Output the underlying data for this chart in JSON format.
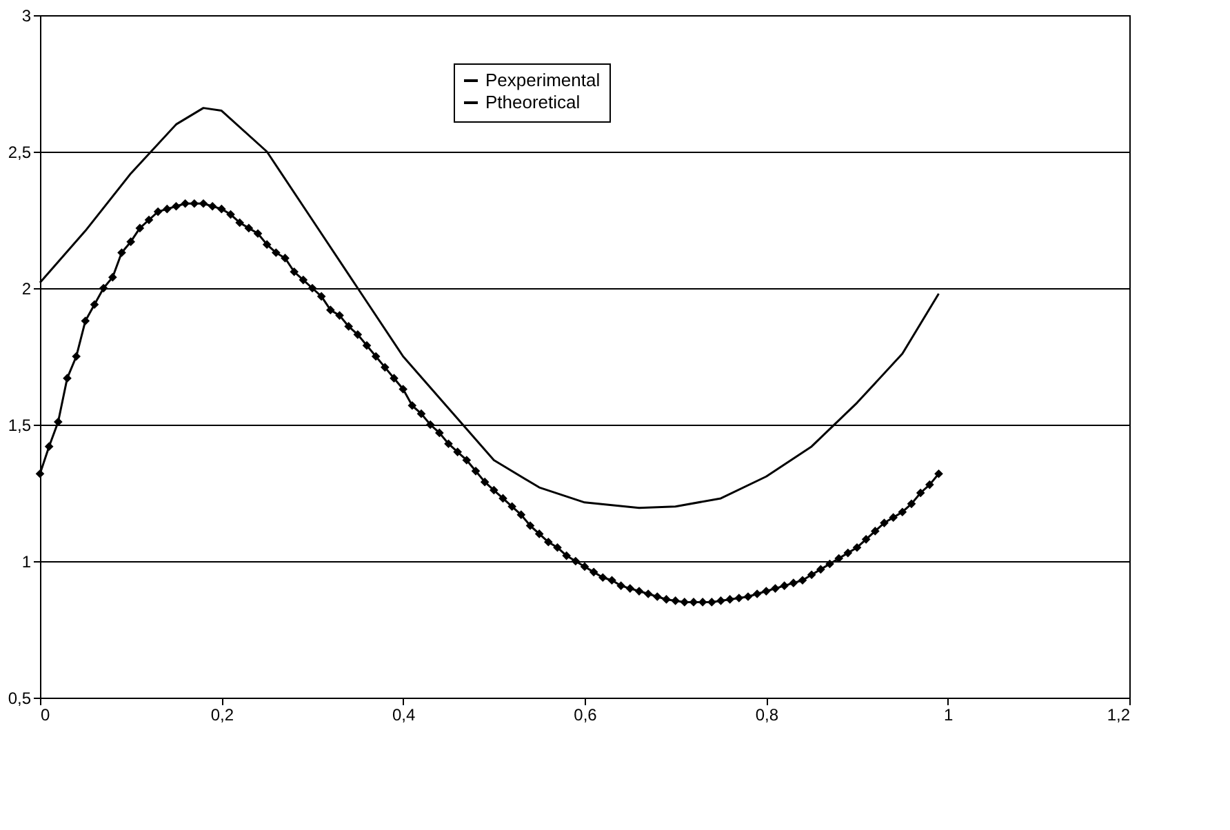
{
  "chart_data": {
    "type": "line",
    "xlim": [
      0,
      1.2
    ],
    "ylim": [
      0.5,
      3
    ],
    "xticks": [
      0,
      {
        "value": 0.2,
        "label": "0,2"
      },
      {
        "value": 0.4,
        "label": "0,4"
      },
      {
        "value": 0.6,
        "label": "0,6"
      },
      {
        "value": 0.8,
        "label": "0,8"
      },
      1,
      {
        "value": 1.2,
        "label": "1,2"
      }
    ],
    "yticks": [
      {
        "value": 0.5,
        "label": "0,5"
      },
      1,
      {
        "value": 1.5,
        "label": "1,5"
      },
      2,
      {
        "value": 2.5,
        "label": "2,5"
      },
      3
    ],
    "grid": "y",
    "legend": "top",
    "line_style": "solid",
    "series": [
      {
        "name": "Pexperimental",
        "color": "#000000",
        "marker": "diamond",
        "x": [
          0,
          0.01,
          0.02,
          0.03,
          0.04,
          0.05,
          0.06,
          0.07,
          0.08,
          0.09,
          0.1,
          0.11,
          0.12,
          0.13,
          0.14,
          0.15,
          0.16,
          0.17,
          0.18,
          0.19,
          0.2,
          0.21,
          0.22,
          0.23,
          0.24,
          0.25,
          0.26,
          0.27,
          0.28,
          0.29,
          0.3,
          0.31,
          0.32,
          0.33,
          0.34,
          0.35,
          0.36,
          0.37,
          0.38,
          0.39,
          0.4,
          0.41,
          0.42,
          0.43,
          0.44,
          0.45,
          0.46,
          0.47,
          0.48,
          0.49,
          0.5,
          0.51,
          0.52,
          0.53,
          0.54,
          0.55,
          0.56,
          0.57,
          0.58,
          0.59,
          0.6,
          0.61,
          0.62,
          0.63,
          0.64,
          0.65,
          0.66,
          0.67,
          0.68,
          0.69,
          0.7,
          0.71,
          0.72,
          0.73,
          0.74,
          0.75,
          0.76,
          0.77,
          0.78,
          0.79,
          0.8,
          0.81,
          0.82,
          0.83,
          0.84,
          0.85,
          0.86,
          0.87,
          0.88,
          0.89,
          0.9,
          0.91,
          0.92,
          0.93,
          0.94,
          0.95,
          0.96,
          0.97,
          0.98,
          0.99
        ],
        "values": [
          1.32,
          1.42,
          1.51,
          1.67,
          1.75,
          1.88,
          1.94,
          2.0,
          2.04,
          2.13,
          2.17,
          2.22,
          2.25,
          2.28,
          2.29,
          2.3,
          2.31,
          2.31,
          2.31,
          2.3,
          2.29,
          2.27,
          2.24,
          2.22,
          2.2,
          2.16,
          2.13,
          2.11,
          2.06,
          2.03,
          2.0,
          1.97,
          1.92,
          1.9,
          1.86,
          1.83,
          1.79,
          1.75,
          1.71,
          1.67,
          1.63,
          1.57,
          1.54,
          1.5,
          1.47,
          1.43,
          1.4,
          1.37,
          1.33,
          1.29,
          1.26,
          1.23,
          1.2,
          1.17,
          1.13,
          1.1,
          1.07,
          1.05,
          1.02,
          1.0,
          0.98,
          0.96,
          0.94,
          0.93,
          0.91,
          0.9,
          0.89,
          0.88,
          0.87,
          0.86,
          0.855,
          0.85,
          0.85,
          0.85,
          0.85,
          0.855,
          0.86,
          0.865,
          0.87,
          0.88,
          0.89,
          0.9,
          0.91,
          0.92,
          0.93,
          0.95,
          0.97,
          0.99,
          1.01,
          1.03,
          1.05,
          1.08,
          1.11,
          1.14,
          1.16,
          1.18,
          1.21,
          1.25,
          1.28,
          1.32
        ]
      },
      {
        "name": "Ptheoretical",
        "color": "#000000",
        "marker": "none",
        "x": [
          0,
          0.05,
          0.1,
          0.15,
          0.18,
          0.2,
          0.25,
          0.3,
          0.35,
          0.4,
          0.45,
          0.5,
          0.55,
          0.6,
          0.66,
          0.7,
          0.75,
          0.8,
          0.85,
          0.9,
          0.95,
          0.99
        ],
        "values": [
          2.02,
          2.21,
          2.42,
          2.6,
          2.66,
          2.65,
          2.5,
          2.25,
          2.0,
          1.75,
          1.56,
          1.37,
          1.27,
          1.215,
          1.195,
          1.2,
          1.23,
          1.31,
          1.42,
          1.58,
          1.76,
          1.98
        ]
      }
    ]
  }
}
